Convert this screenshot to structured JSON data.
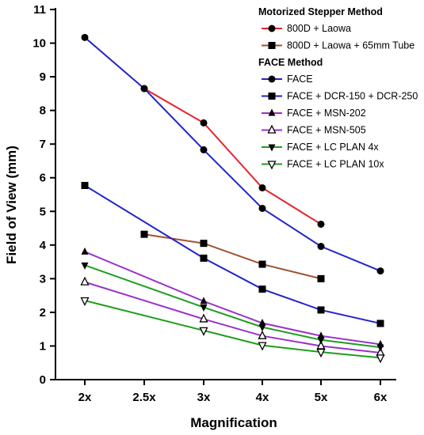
{
  "chart_data": {
    "type": "line",
    "title": "",
    "xlabel": "Magnification",
    "ylabel": "Field of View (mm)",
    "x_categories": [
      "2x",
      "2.5x",
      "3x",
      "4x",
      "5x",
      "6x"
    ],
    "ylim": [
      0,
      11
    ],
    "y_ticks": [
      0,
      1,
      2,
      3,
      4,
      5,
      6,
      7,
      8,
      9,
      10,
      11
    ],
    "grid": false,
    "legend": {
      "placement": "top-right",
      "groups": [
        {
          "title": "Motorized Stepper Method",
          "series_indices": [
            0,
            1
          ]
        },
        {
          "title": "FACE Method",
          "series_indices": [
            2,
            3,
            4,
            5,
            6,
            7
          ]
        }
      ]
    },
    "series": [
      {
        "name": "800D + Laowa",
        "color": "#e8202a",
        "marker": "circle",
        "marker_color": "#000000",
        "points": [
          [
            "2.5x",
            8.65
          ],
          [
            "3x",
            7.63
          ],
          [
            "4x",
            5.7
          ],
          [
            "5x",
            4.62
          ]
        ]
      },
      {
        "name": "800D + Laowa + 65mm Tube",
        "color": "#a0522d",
        "marker": "square",
        "marker_color": "#000000",
        "points": [
          [
            "2.5x",
            4.32
          ],
          [
            "3x",
            4.05
          ],
          [
            "4x",
            3.43
          ],
          [
            "5x",
            3.0
          ]
        ]
      },
      {
        "name": "FACE",
        "color": "#2323cc",
        "marker": "circle",
        "marker_color": "#000000",
        "points": [
          [
            "2x",
            10.17
          ],
          [
            "2.5x",
            8.65
          ],
          [
            "3x",
            6.83
          ],
          [
            "4x",
            5.09
          ],
          [
            "5x",
            3.96
          ],
          [
            "6x",
            3.23
          ]
        ]
      },
      {
        "name": "FACE + DCR-150 + DCR-250",
        "color": "#2323cc",
        "marker": "square",
        "marker_color": "#000000",
        "points": [
          [
            "2x",
            5.77
          ],
          [
            "3x",
            3.61
          ],
          [
            "4x",
            2.69
          ],
          [
            "5x",
            2.07
          ],
          [
            "6x",
            1.67
          ]
        ]
      },
      {
        "name": "FACE + MSN-202",
        "color": "#9932cc",
        "marker": "triangle",
        "marker_color": "#000000",
        "points": [
          [
            "2x",
            3.8
          ],
          [
            "3x",
            2.33
          ],
          [
            "4x",
            1.68
          ],
          [
            "5x",
            1.3
          ],
          [
            "6x",
            1.05
          ]
        ]
      },
      {
        "name": "FACE + MSN-505",
        "color": "#9932cc",
        "marker": "triangle-open",
        "marker_color": "#000000",
        "points": [
          [
            "2x",
            2.9
          ],
          [
            "3x",
            1.8
          ],
          [
            "4x",
            1.3
          ],
          [
            "5x",
            1.0
          ],
          [
            "6x",
            0.8
          ]
        ]
      },
      {
        "name": "FACE + LC PLAN 4x",
        "color": "#1f9e1f",
        "marker": "triangle-down",
        "marker_color": "#000000",
        "points": [
          [
            "2x",
            3.4
          ],
          [
            "3x",
            2.15
          ],
          [
            "4x",
            1.56
          ],
          [
            "5x",
            1.18
          ],
          [
            "6x",
            0.96
          ]
        ]
      },
      {
        "name": "FACE + LC PLAN 10x",
        "color": "#1f9e1f",
        "marker": "triangle-down-open",
        "marker_color": "#000000",
        "points": [
          [
            "2x",
            2.35
          ],
          [
            "3x",
            1.46
          ],
          [
            "4x",
            1.02
          ],
          [
            "5x",
            0.82
          ],
          [
            "6x",
            0.65
          ]
        ]
      }
    ]
  }
}
